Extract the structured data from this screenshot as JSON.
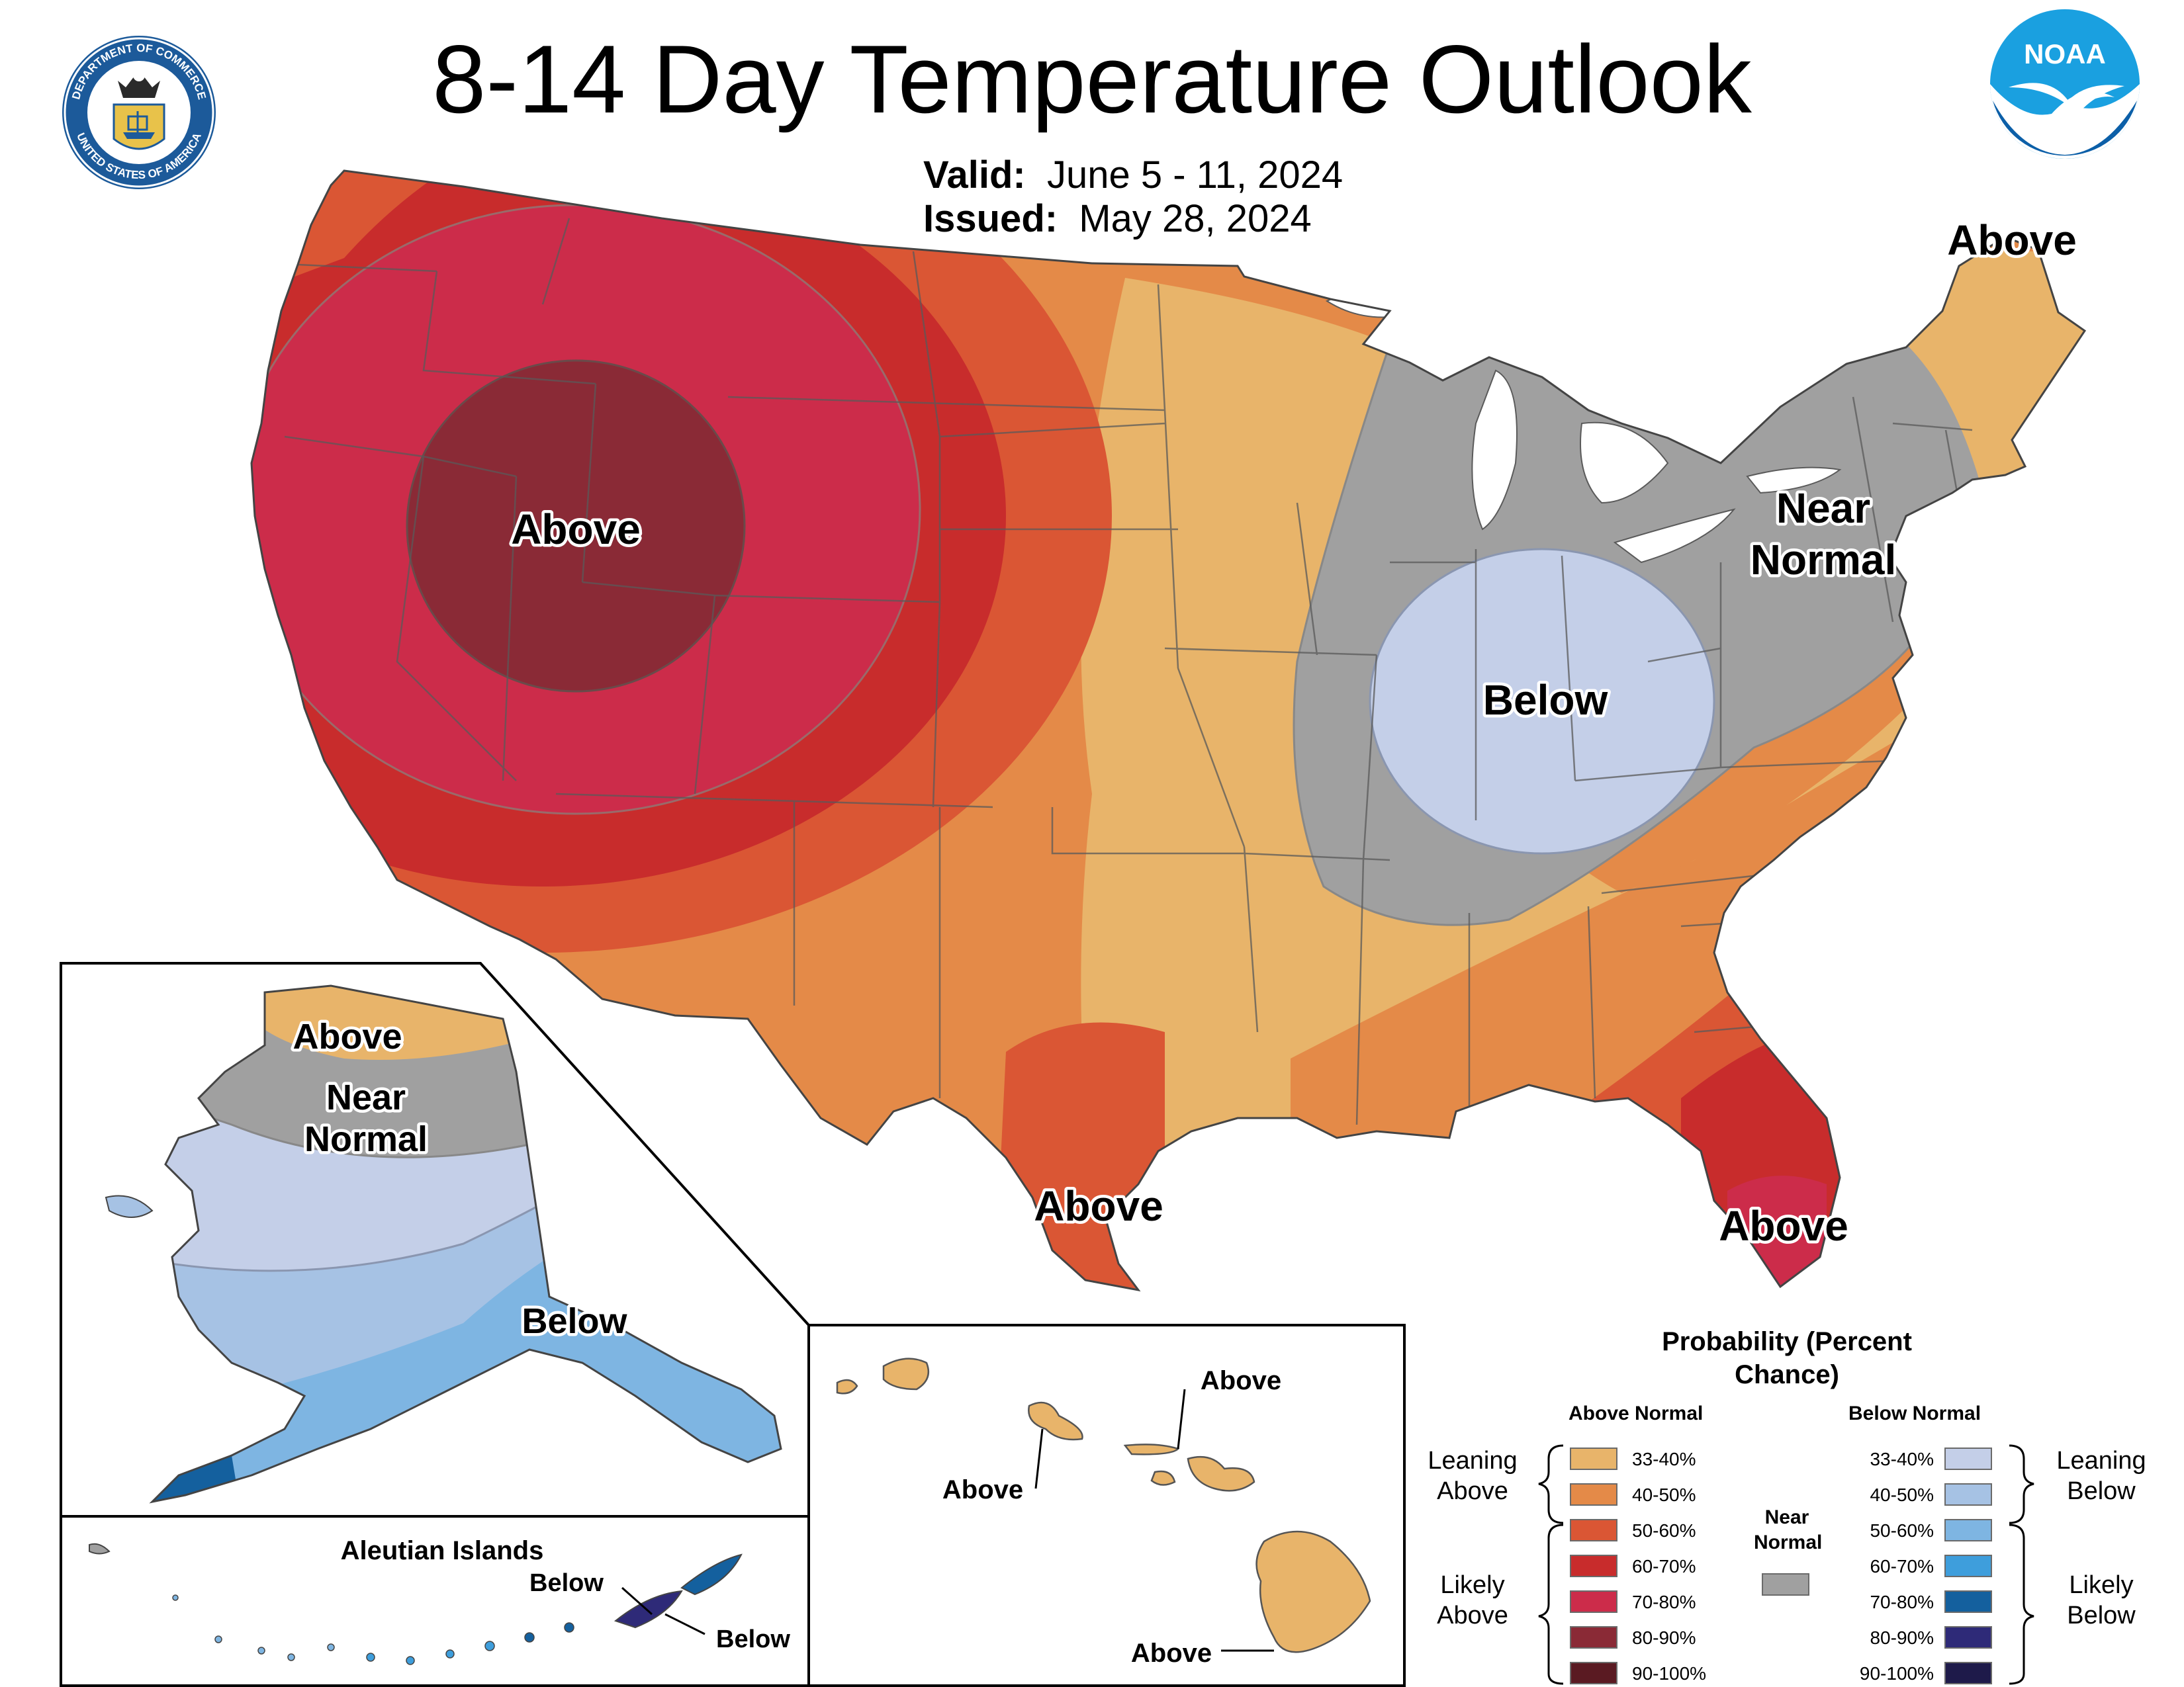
{
  "header": {
    "title": "8-14 Day Temperature Outlook",
    "valid_label": "Valid:",
    "valid_value": "June 5 - 11, 2024",
    "issued_label": "Issued:",
    "issued_value": "May 28, 2024"
  },
  "logos": {
    "left_seal": "Department of Commerce seal",
    "left_seal_text_top": "DEPARTMENT OF COMMERCE",
    "left_seal_text_bottom": "UNITED STATES OF AMERICA",
    "right_logo": "NOAA",
    "right_logo_text": "NOAA"
  },
  "map_labels": {
    "west": "Above",
    "northeast_maine": "Above",
    "northeast": "Near Normal",
    "ohio_valley": "Below",
    "texas": "Above",
    "florida": "Above"
  },
  "alaska": {
    "north": "Above",
    "middle": "Near Normal",
    "south": "Below",
    "aleutian_title": "Aleutian Islands",
    "aleutian_label_1": "Below",
    "aleutian_label_2": "Below"
  },
  "hawaii": {
    "label_1": "Above",
    "label_2": "Above",
    "label_3": "Above"
  },
  "legend": {
    "title": "Probability (Percent Chance)",
    "above_header": "Above Normal",
    "below_header": "Below Normal",
    "near_normal": "Near Normal",
    "leaning_above": "Leaning Above",
    "likely_above": "Likely Above",
    "leaning_below": "Leaning Below",
    "likely_below": "Likely Below",
    "above_bins": [
      {
        "label": "33-40%",
        "color": "#E8B46A"
      },
      {
        "label": "40-50%",
        "color": "#E48A48"
      },
      {
        "label": "50-60%",
        "color": "#DA5634"
      },
      {
        "label": "60-70%",
        "color": "#C82C2C"
      },
      {
        "label": "70-80%",
        "color": "#CC2C4A"
      },
      {
        "label": "80-90%",
        "color": "#8A2A36"
      },
      {
        "label": "90-100%",
        "color": "#5A1A22"
      }
    ],
    "below_bins": [
      {
        "label": "33-40%",
        "color": "#C4CFE8"
      },
      {
        "label": "40-50%",
        "color": "#A6C2E4"
      },
      {
        "label": "50-60%",
        "color": "#7EB5E2"
      },
      {
        "label": "60-70%",
        "color": "#3E9EDC"
      },
      {
        "label": "70-80%",
        "color": "#14609E"
      },
      {
        "label": "80-90%",
        "color": "#2E2A78"
      },
      {
        "label": "90-100%",
        "color": "#1E1A4A"
      }
    ],
    "near_normal_color": "#A0A0A0"
  }
}
